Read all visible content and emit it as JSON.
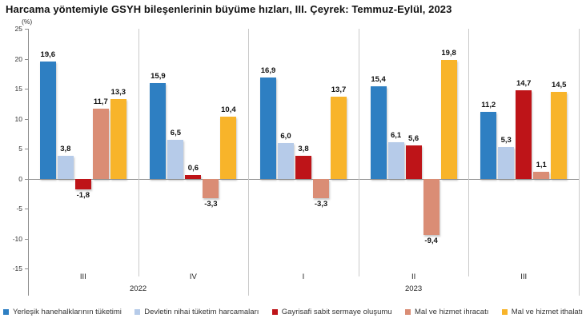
{
  "title": "Harcama yöntemiyle GSYH bileşenlerinin büyüme hızları, III. Çeyrek: Temmuz-Eylül, 2023",
  "chart_data": {
    "type": "bar",
    "title": "Harcama yöntemiyle GSYH bileşenlerinin büyüme hızları, III. Çeyrek: Temmuz-Eylül, 2023",
    "unit_label": "(%)",
    "ylim": [
      -15,
      25
    ],
    "yticks": [
      25,
      20,
      15,
      10,
      5,
      0,
      -5,
      -10,
      -15
    ],
    "grid": false,
    "legend_position": "bottom",
    "decimal_separator": ",",
    "categories": [
      "III",
      "IV",
      "I",
      "II",
      "III"
    ],
    "year_spans": [
      {
        "label": "2022",
        "count": 2
      },
      {
        "label": "2023",
        "count": 3
      }
    ],
    "series": [
      {
        "name": "Yerleşik hanehalklarının tüketimi",
        "color": "#2E7FC2",
        "values": [
          19.6,
          15.9,
          16.9,
          15.4,
          11.2
        ]
      },
      {
        "name": "Devletin nihai tüketim harcamaları",
        "color": "#B6CBE9",
        "values": [
          3.8,
          6.5,
          6.0,
          6.1,
          5.3
        ]
      },
      {
        "name": "Gayrisafi sabit sermaye oluşumu",
        "color": "#BE1418",
        "values": [
          -1.8,
          0.6,
          3.8,
          5.6,
          14.7
        ]
      },
      {
        "name": "Mal ve hizmet ihracatı",
        "color": "#DA8D75",
        "values": [
          11.7,
          -3.3,
          -3.3,
          -9.4,
          1.1
        ]
      },
      {
        "name": "Mal ve hizmet ithalatı",
        "color": "#F8B42A",
        "values": [
          13.3,
          10.4,
          13.7,
          19.8,
          14.5
        ]
      }
    ]
  }
}
